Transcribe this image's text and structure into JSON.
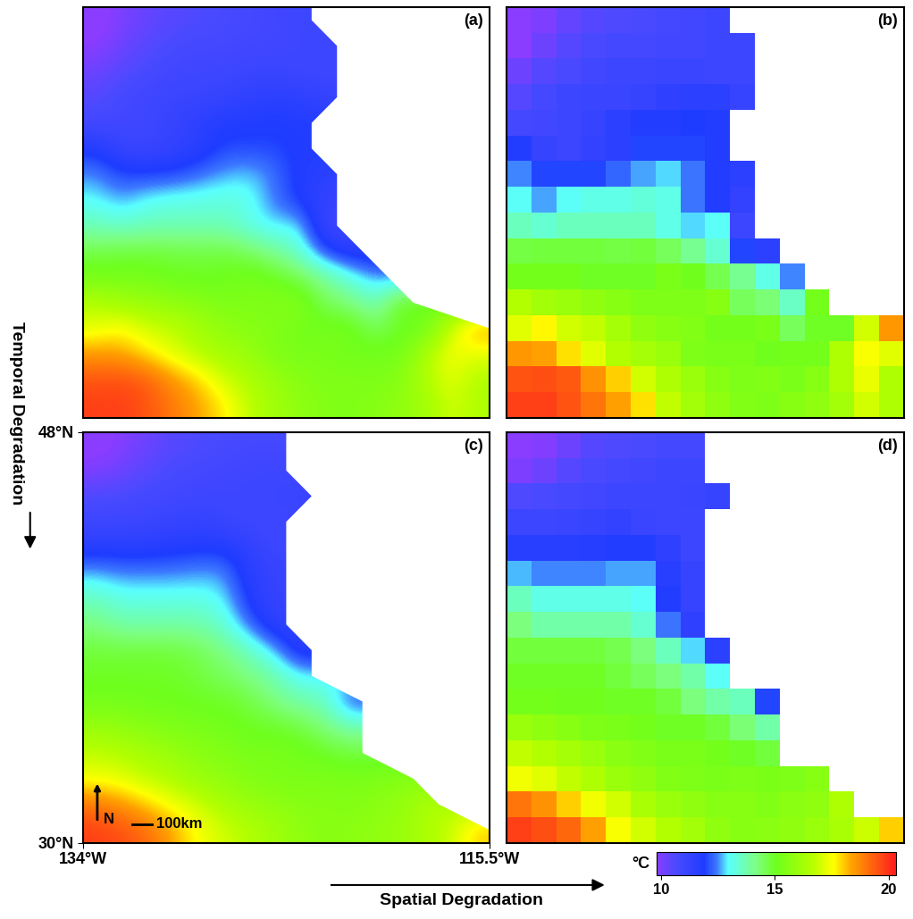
{
  "chart_data": [
    {
      "type": "heatmap",
      "title": "(a)",
      "tick_labels": false,
      "style": "smooth",
      "cells": [
        [
          9.6,
          10.0,
          10.3,
          10.5,
          10.6,
          10.7,
          10.8,
          10.9,
          11.0,
          null,
          null,
          null,
          null,
          null,
          null,
          null
        ],
        [
          9.8,
          10.2,
          10.5,
          10.7,
          10.8,
          10.8,
          10.9,
          10.9,
          11.0,
          11.0,
          null,
          null,
          null,
          null,
          null,
          null
        ],
        [
          10.2,
          10.5,
          10.7,
          10.9,
          11.0,
          11.0,
          11.1,
          11.1,
          11.0,
          11.0,
          null,
          null,
          null,
          null,
          null,
          null
        ],
        [
          10.5,
          10.8,
          11.0,
          11.1,
          11.1,
          11.2,
          11.4,
          11.5,
          11.5,
          11.2,
          null,
          null,
          null,
          null,
          null,
          null
        ],
        [
          10.8,
          10.9,
          11.0,
          11.2,
          11.5,
          11.8,
          11.8,
          11.9,
          11.8,
          null,
          null,
          null,
          null,
          null,
          null,
          null
        ],
        [
          11.8,
          11.2,
          11.0,
          11.3,
          11.5,
          12.0,
          12.0,
          12.0,
          11.8,
          null,
          null,
          null,
          null,
          null,
          null,
          null
        ],
        [
          12.5,
          12.0,
          12.0,
          12.0,
          12.3,
          12.6,
          12.8,
          12.4,
          11.8,
          11.5,
          null,
          null,
          null,
          null,
          null,
          null
        ],
        [
          13.0,
          12.6,
          13.0,
          13.2,
          13.2,
          13.3,
          13.2,
          12.4,
          11.8,
          11.3,
          null,
          null,
          null,
          null,
          null,
          null
        ],
        [
          13.6,
          13.4,
          13.6,
          13.6,
          13.6,
          13.6,
          13.2,
          12.8,
          13.0,
          11.0,
          null,
          null,
          null,
          null,
          null,
          null
        ],
        [
          14.7,
          14.8,
          14.8,
          14.8,
          14.7,
          14.8,
          14.5,
          14.0,
          13.4,
          12.0,
          11.5,
          null,
          null,
          null,
          null,
          null
        ],
        [
          15.2,
          15.2,
          15.2,
          15.0,
          15.0,
          15.0,
          15.3,
          15.1,
          14.6,
          14.0,
          13.2,
          12.5,
          null,
          null,
          null,
          null
        ],
        [
          16.6,
          16.2,
          16.0,
          15.8,
          15.6,
          15.4,
          15.4,
          15.4,
          15.6,
          14.5,
          14.3,
          13.5,
          15.2,
          null,
          null,
          null
        ],
        [
          17.2,
          17.6,
          17.0,
          16.8,
          16.3,
          15.8,
          15.6,
          15.5,
          15.2,
          15.2,
          15.3,
          14.5,
          15.0,
          15.0,
          17.0,
          18.5
        ],
        [
          18.5,
          18.4,
          17.8,
          17.2,
          16.6,
          16.3,
          16.0,
          15.4,
          15.3,
          15.3,
          15.1,
          15.2,
          15.2,
          16.5,
          17.5,
          17.2
        ],
        [
          19.5,
          19.6,
          19.4,
          18.6,
          18.0,
          17.0,
          16.5,
          16.0,
          15.6,
          15.4,
          15.5,
          15.3,
          15.6,
          16.5,
          17.3,
          16.5
        ],
        [
          19.8,
          19.8,
          19.5,
          19.0,
          18.4,
          17.8,
          16.8,
          16.2,
          15.8,
          15.5,
          15.4,
          15.6,
          15.8,
          16.2,
          17.0,
          16.5
        ]
      ]
    },
    {
      "type": "heatmap",
      "title": "(b)",
      "tick_labels": false,
      "style": "cells",
      "cells": [
        [
          9.6,
          10.0,
          10.3,
          10.5,
          10.6,
          10.7,
          10.8,
          10.9,
          11.0,
          null,
          null,
          null,
          null,
          null,
          null,
          null
        ],
        [
          9.8,
          10.2,
          10.5,
          10.7,
          10.8,
          10.8,
          10.9,
          10.9,
          11.0,
          11.0,
          null,
          null,
          null,
          null,
          null,
          null
        ],
        [
          10.2,
          10.5,
          10.7,
          10.9,
          11.0,
          11.0,
          11.1,
          11.1,
          11.0,
          11.0,
          null,
          null,
          null,
          null,
          null,
          null
        ],
        [
          10.5,
          10.8,
          11.0,
          11.1,
          11.1,
          11.2,
          11.4,
          11.5,
          11.5,
          11.2,
          null,
          null,
          null,
          null,
          null,
          null
        ],
        [
          10.8,
          10.9,
          11.0,
          11.2,
          11.5,
          11.8,
          11.8,
          11.9,
          11.8,
          null,
          null,
          null,
          null,
          null,
          null,
          null
        ],
        [
          11.8,
          11.2,
          11.0,
          11.3,
          11.5,
          12.0,
          12.0,
          12.0,
          11.8,
          null,
          null,
          null,
          null,
          null,
          null,
          null
        ],
        [
          12.5,
          12.0,
          12.0,
          12.0,
          12.3,
          12.6,
          12.8,
          12.4,
          11.8,
          11.5,
          null,
          null,
          null,
          null,
          null,
          null
        ],
        [
          13.0,
          12.6,
          13.0,
          13.2,
          13.2,
          13.3,
          13.2,
          12.4,
          11.8,
          11.3,
          null,
          null,
          null,
          null,
          null,
          null
        ],
        [
          13.6,
          13.4,
          13.6,
          13.6,
          13.6,
          13.6,
          13.2,
          12.8,
          13.0,
          11.0,
          null,
          null,
          null,
          null,
          null,
          null
        ],
        [
          14.7,
          14.8,
          14.8,
          14.8,
          14.7,
          14.8,
          14.5,
          14.0,
          13.4,
          12.0,
          11.5,
          null,
          null,
          null,
          null,
          null
        ],
        [
          15.2,
          15.2,
          15.2,
          15.0,
          15.0,
          15.0,
          15.3,
          15.1,
          14.6,
          14.0,
          13.2,
          12.5,
          null,
          null,
          null,
          null
        ],
        [
          16.6,
          16.2,
          16.0,
          15.8,
          15.6,
          15.4,
          15.4,
          15.4,
          15.6,
          14.5,
          14.3,
          13.5,
          15.2,
          null,
          null,
          null
        ],
        [
          17.2,
          17.6,
          17.0,
          16.8,
          16.3,
          15.8,
          15.6,
          15.5,
          15.2,
          15.2,
          15.3,
          14.5,
          15.0,
          15.0,
          17.0,
          18.5
        ],
        [
          18.5,
          18.4,
          17.8,
          17.2,
          16.6,
          16.3,
          16.0,
          15.4,
          15.3,
          15.3,
          15.1,
          15.2,
          15.2,
          16.5,
          17.5,
          17.2
        ],
        [
          19.5,
          19.6,
          19.4,
          18.6,
          18.0,
          17.0,
          16.5,
          16.0,
          15.6,
          15.4,
          15.5,
          15.3,
          15.6,
          16.5,
          17.3,
          16.5
        ],
        [
          19.8,
          19.8,
          19.5,
          19.0,
          18.4,
          17.8,
          16.8,
          16.2,
          15.8,
          15.5,
          15.4,
          15.6,
          15.8,
          16.2,
          17.0,
          16.5
        ]
      ]
    },
    {
      "type": "heatmap",
      "title": "(c)",
      "style": "smooth",
      "xlim": [
        -134,
        -115.5
      ],
      "ylim": [
        30,
        48
      ],
      "xticks": [
        {
          "value": -134,
          "label": "134°W"
        },
        {
          "value": -115.5,
          "label": "115.5°W"
        }
      ],
      "yticks": [
        {
          "value": 30,
          "label": "30°N"
        },
        {
          "value": 48,
          "label": "48°N"
        }
      ],
      "annotations": [
        "N",
        "100km"
      ],
      "cells": [
        [
          9.6,
          9.9,
          10.2,
          10.5,
          10.6,
          10.7,
          10.8,
          10.8,
          null,
          null,
          null,
          null,
          null,
          null,
          null,
          null
        ],
        [
          10.0,
          10.2,
          10.5,
          10.7,
          10.8,
          10.9,
          11.0,
          11.0,
          null,
          null,
          null,
          null,
          null,
          null,
          null,
          null
        ],
        [
          10.6,
          10.7,
          10.8,
          10.9,
          11.0,
          11.0,
          11.0,
          11.1,
          11.2,
          null,
          null,
          null,
          null,
          null,
          null,
          null
        ],
        [
          11.0,
          11.0,
          11.1,
          11.2,
          11.3,
          11.1,
          11.0,
          11.0,
          null,
          null,
          null,
          null,
          null,
          null,
          null,
          null
        ],
        [
          11.6,
          11.6,
          11.6,
          11.7,
          11.8,
          11.8,
          11.4,
          11.0,
          null,
          null,
          null,
          null,
          null,
          null,
          null,
          null
        ],
        [
          12.7,
          12.5,
          12.5,
          12.5,
          12.6,
          12.6,
          11.6,
          11.2,
          null,
          null,
          null,
          null,
          null,
          null,
          null,
          null
        ],
        [
          13.6,
          13.2,
          13.2,
          13.2,
          13.2,
          13.0,
          11.8,
          11.2,
          null,
          null,
          null,
          null,
          null,
          null,
          null,
          null
        ],
        [
          14.2,
          13.8,
          13.8,
          13.8,
          13.8,
          13.4,
          12.4,
          11.4,
          null,
          null,
          null,
          null,
          null,
          null,
          null,
          null
        ],
        [
          14.8,
          14.8,
          14.8,
          14.8,
          14.6,
          14.2,
          13.6,
          12.8,
          11.5,
          null,
          null,
          null,
          null,
          null,
          null,
          null
        ],
        [
          15.0,
          15.0,
          15.0,
          15.0,
          14.8,
          14.5,
          14.2,
          13.8,
          13.0,
          null,
          null,
          null,
          null,
          null,
          null,
          null
        ],
        [
          15.2,
          15.2,
          15.1,
          15.1,
          15.0,
          15.0,
          14.8,
          14.2,
          13.8,
          13.6,
          12.0,
          null,
          null,
          null,
          null,
          null
        ],
        [
          16.0,
          15.8,
          15.6,
          15.4,
          15.3,
          15.2,
          15.0,
          15.0,
          14.8,
          14.3,
          13.8,
          null,
          null,
          null,
          null,
          null
        ],
        [
          16.8,
          16.6,
          16.3,
          16.0,
          15.7,
          15.5,
          15.3,
          15.3,
          15.2,
          15.0,
          14.8,
          null,
          null,
          null,
          null,
          null
        ],
        [
          17.4,
          17.2,
          16.8,
          16.5,
          16.0,
          15.8,
          15.5,
          15.4,
          15.3,
          15.4,
          15.3,
          15.4,
          15.6,
          null,
          null,
          null
        ],
        [
          19.0,
          18.6,
          18.0,
          17.4,
          17.0,
          16.4,
          16.0,
          15.8,
          15.6,
          15.6,
          15.5,
          15.7,
          15.8,
          16.5,
          null,
          null
        ],
        [
          19.8,
          19.6,
          19.2,
          18.4,
          17.5,
          17.0,
          16.6,
          16.2,
          15.8,
          15.6,
          15.7,
          15.8,
          16.0,
          16.4,
          16.9,
          18.0
        ]
      ]
    },
    {
      "type": "heatmap",
      "title": "(d)",
      "tick_labels": false,
      "style": "cells",
      "cells": [
        [
          9.6,
          9.9,
          10.2,
          10.5,
          10.6,
          10.7,
          10.8,
          10.8,
          null,
          null,
          null,
          null,
          null,
          null,
          null,
          null
        ],
        [
          10.0,
          10.2,
          10.5,
          10.7,
          10.8,
          10.9,
          11.0,
          11.0,
          null,
          null,
          null,
          null,
          null,
          null,
          null,
          null
        ],
        [
          10.6,
          10.7,
          10.8,
          10.9,
          11.0,
          11.0,
          11.0,
          11.1,
          11.2,
          null,
          null,
          null,
          null,
          null,
          null,
          null
        ],
        [
          11.0,
          11.0,
          11.1,
          11.2,
          11.3,
          11.1,
          11.0,
          11.0,
          null,
          null,
          null,
          null,
          null,
          null,
          null,
          null
        ],
        [
          11.6,
          11.6,
          11.6,
          11.7,
          11.8,
          11.8,
          11.4,
          11.0,
          null,
          null,
          null,
          null,
          null,
          null,
          null,
          null
        ],
        [
          12.7,
          12.5,
          12.5,
          12.5,
          12.6,
          12.6,
          11.6,
          11.2,
          null,
          null,
          null,
          null,
          null,
          null,
          null,
          null
        ],
        [
          13.6,
          13.2,
          13.2,
          13.2,
          13.2,
          13.0,
          11.8,
          11.2,
          null,
          null,
          null,
          null,
          null,
          null,
          null,
          null
        ],
        [
          14.2,
          13.8,
          13.8,
          13.8,
          13.8,
          13.4,
          12.4,
          11.4,
          null,
          null,
          null,
          null,
          null,
          null,
          null,
          null
        ],
        [
          14.8,
          14.8,
          14.8,
          14.8,
          14.6,
          14.2,
          13.6,
          12.8,
          11.5,
          null,
          null,
          null,
          null,
          null,
          null,
          null
        ],
        [
          15.0,
          15.0,
          15.0,
          15.0,
          14.8,
          14.5,
          14.2,
          13.8,
          13.0,
          null,
          null,
          null,
          null,
          null,
          null,
          null
        ],
        [
          15.2,
          15.2,
          15.1,
          15.1,
          15.0,
          15.0,
          14.8,
          14.2,
          13.8,
          13.6,
          12.0,
          null,
          null,
          null,
          null,
          null
        ],
        [
          16.0,
          15.8,
          15.6,
          15.4,
          15.3,
          15.2,
          15.0,
          15.0,
          14.8,
          14.3,
          13.8,
          null,
          null,
          null,
          null,
          null
        ],
        [
          16.8,
          16.6,
          16.3,
          16.0,
          15.7,
          15.5,
          15.3,
          15.3,
          15.2,
          15.0,
          14.8,
          null,
          null,
          null,
          null,
          null
        ],
        [
          17.4,
          17.2,
          16.8,
          16.5,
          16.0,
          15.8,
          15.5,
          15.4,
          15.3,
          15.4,
          15.3,
          15.4,
          15.6,
          null,
          null,
          null
        ],
        [
          19.0,
          18.6,
          18.0,
          17.4,
          17.0,
          16.4,
          16.0,
          15.8,
          15.6,
          15.6,
          15.5,
          15.7,
          15.8,
          16.5,
          null,
          null
        ],
        [
          19.8,
          19.6,
          19.2,
          18.4,
          17.5,
          17.0,
          16.6,
          16.2,
          15.8,
          15.6,
          15.7,
          15.8,
          16.0,
          16.4,
          16.9,
          18.0
        ]
      ]
    }
  ],
  "colorbar": {
    "label": "°C",
    "range": [
      9.8,
      20.3
    ],
    "ticks": [
      10,
      15,
      20
    ]
  },
  "texts": {
    "vertical": "Temporal Degradation",
    "horizontal": "Spatial Degradation"
  }
}
